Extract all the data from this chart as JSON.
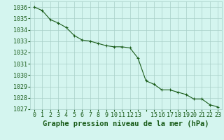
{
  "x": [
    0,
    1,
    2,
    3,
    4,
    5,
    6,
    7,
    8,
    9,
    10,
    11,
    12,
    13,
    14,
    15,
    16,
    17,
    18,
    19,
    20,
    21,
    22,
    23
  ],
  "y": [
    1036.0,
    1035.7,
    1034.9,
    1034.6,
    1034.2,
    1033.5,
    1033.1,
    1033.0,
    1032.8,
    1032.6,
    1032.5,
    1032.5,
    1032.4,
    1031.5,
    1029.5,
    1029.2,
    1028.7,
    1028.7,
    1028.5,
    1028.3,
    1027.9,
    1027.9,
    1027.4,
    1027.2
  ],
  "line_color": "#1a5c1a",
  "marker": "+",
  "marker_size": 3,
  "marker_lw": 0.8,
  "bg_color": "#d4f5ef",
  "grid_color": "#a8cfc8",
  "title": "Graphe pression niveau de la mer (hPa)",
  "ylim": [
    1027,
    1036.5
  ],
  "xlim": [
    -0.5,
    23.5
  ],
  "yticks": [
    1027,
    1028,
    1029,
    1030,
    1031,
    1032,
    1033,
    1034,
    1035,
    1036
  ],
  "xtick_labels": [
    "0",
    "1",
    "2",
    "3",
    "4",
    "5",
    "6",
    "7",
    "8",
    "9",
    "10",
    "11",
    "12",
    "13",
    "",
    "15",
    "16",
    "17",
    "18",
    "19",
    "20",
    "21",
    "22",
    "23"
  ],
  "title_fontsize": 7.5,
  "tick_fontsize": 6.0,
  "title_color": "#1a5c1a",
  "tick_color": "#1a5c1a",
  "line_width": 0.8
}
